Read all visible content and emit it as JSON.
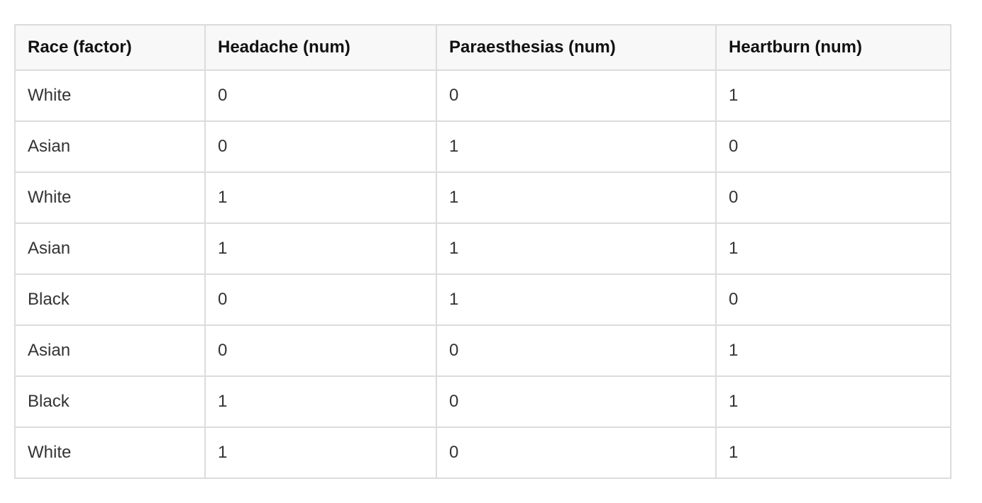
{
  "table": {
    "columns": [
      "Race (factor)",
      "Headache (num)",
      "Paraesthesias (num)",
      "Heartburn (num)"
    ],
    "rows": [
      [
        "White",
        "0",
        "0",
        "1"
      ],
      [
        "Asian",
        "0",
        "1",
        "0"
      ],
      [
        "White",
        "1",
        "1",
        "0"
      ],
      [
        "Asian",
        "1",
        "1",
        "1"
      ],
      [
        "Black",
        "0",
        "1",
        "0"
      ],
      [
        "Asian",
        "0",
        "0",
        "1"
      ],
      [
        "Black",
        "1",
        "0",
        "1"
      ],
      [
        "White",
        "1",
        "0",
        "1"
      ]
    ]
  },
  "colors": {
    "border": "#dcdcdc",
    "header_bg": "#f8f8f8",
    "text": "#333333"
  }
}
